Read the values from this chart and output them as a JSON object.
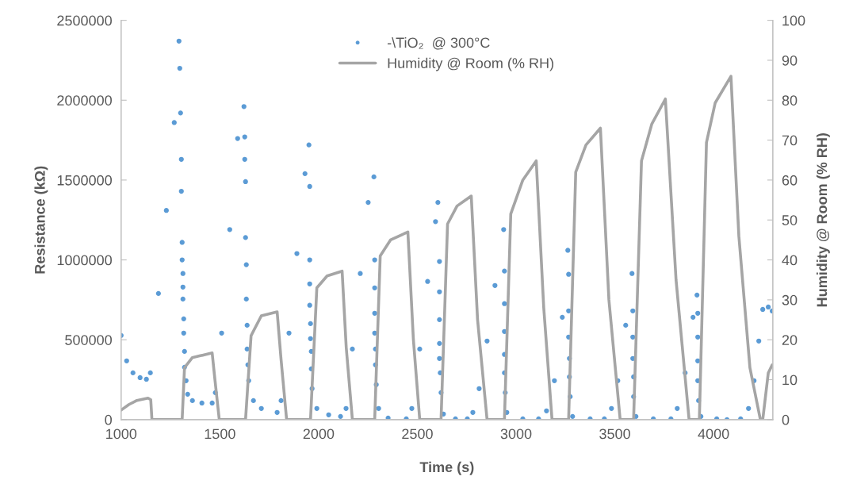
{
  "chart_data": {
    "type": "scatter",
    "xlabel": "Time (s)",
    "ylabel": "Resistance (kΩ)",
    "y2label": "Humidity @ Room (% RH)",
    "xlim": [
      1000,
      4300
    ],
    "xticks": [
      1000,
      1500,
      2000,
      2500,
      3000,
      3500,
      4000
    ],
    "ylim": [
      0,
      2500000
    ],
    "yticks": [
      0,
      500000,
      1000000,
      1500000,
      2000000,
      2500000
    ],
    "y2lim": [
      0,
      100
    ],
    "y2ticks": [
      0,
      10,
      20,
      30,
      40,
      50,
      60,
      70,
      80,
      90,
      100
    ],
    "grid": false,
    "legend": "top",
    "series": [
      {
        "name": "-\\TiO₂  @ 300°C",
        "marker": "circle",
        "color": "#5b9bd5",
        "x": [
          1000,
          1028,
          1060,
          1096,
          1128,
          1148,
          1189,
          1229,
          1269,
          1293,
          1297,
          1301,
          1305,
          1305,
          1309,
          1309,
          1313,
          1313,
          1313,
          1317,
          1317,
          1321,
          1321,
          1329,
          1337,
          1361,
          1409,
          1461,
          1477,
          1509,
          1550,
          1590,
          1622,
          1626,
          1626,
          1630,
          1630,
          1634,
          1634,
          1638,
          1638,
          1642,
          1646,
          1670,
          1710,
          1790,
          1810,
          1850,
          1890,
          1931,
          1951,
          1955,
          1955,
          1955,
          1955,
          1959,
          1959,
          1963,
          1963,
          1967,
          1991,
          2051,
          2111,
          2139,
          2171,
          2211,
          2251,
          2280,
          2284,
          2284,
          2284,
          2284,
          2288,
          2288,
          2292,
          2304,
          2352,
          2444,
          2472,
          2512,
          2552,
          2592,
          2604,
          2612,
          2612,
          2612,
          2612,
          2612,
          2616,
          2620,
          2632,
          2693,
          2753,
          2781,
          2813,
          2853,
          2893,
          2937,
          2941,
          2941,
          2941,
          2941,
          2941,
          2945,
          2953,
          3034,
          3114,
          3154,
          3194,
          3234,
          3262,
          3266,
          3266,
          3266,
          3270,
          3270,
          3274,
          3286,
          3375,
          3447,
          3483,
          3515,
          3555,
          3587,
          3591,
          3591,
          3591,
          3595,
          3595,
          3607,
          3695,
          3784,
          3816,
          3856,
          3896,
          3916,
          3920,
          3920,
          3920,
          3920,
          3924,
          3936,
          4016,
          4068,
          4137,
          4177,
          4205,
          4229,
          4249,
          4277,
          4297
        ],
        "values": [
          527000,
          368000,
          293000,
          263000,
          253000,
          293000,
          790000,
          1310000,
          1860000,
          2370000,
          2200000,
          1920000,
          1630000,
          1430000,
          1110000,
          1000000,
          915000,
          830000,
          755000,
          631000,
          542000,
          427000,
          328000,
          244000,
          159000,
          119000,
          104000,
          104000,
          169000,
          542000,
          1190000,
          1760000,
          1960000,
          1770000,
          1630000,
          1490000,
          1140000,
          970000,
          755000,
          591000,
          442000,
          343000,
          244000,
          119000,
          70000,
          45000,
          119000,
          542000,
          1040000,
          1540000,
          1720000,
          1460000,
          1000000,
          850000,
          716000,
          601000,
          507000,
          427000,
          318000,
          194000,
          70000,
          30000,
          20000,
          70000,
          442000,
          915000,
          1360000,
          1520000,
          1000000,
          825000,
          666000,
          542000,
          442000,
          343000,
          219000,
          70000,
          10000,
          5000,
          70000,
          442000,
          865000,
          1240000,
          1360000,
          990000,
          800000,
          626000,
          477000,
          383000,
          293000,
          169000,
          35000,
          5000,
          5000,
          45000,
          194000,
          492000,
          840000,
          1190000,
          930000,
          726000,
          552000,
          408000,
          293000,
          169000,
          45000,
          5000,
          5000,
          55000,
          244000,
          641000,
          1060000,
          910000,
          681000,
          517000,
          383000,
          268000,
          144000,
          20000,
          5000,
          5000,
          70000,
          244000,
          591000,
          915000,
          681000,
          517000,
          383000,
          268000,
          144000,
          20000,
          5000,
          5000,
          70000,
          293000,
          641000,
          780000,
          666000,
          517000,
          368000,
          244000,
          119000,
          20000,
          5000,
          0,
          5000,
          70000,
          244000,
          492000,
          690000,
          705000,
          680000
        ]
      },
      {
        "name": "Humidity @ Room (% RH)",
        "type": "line",
        "axis": "y2",
        "color": "#a5a5a5",
        "x": [
          1000,
          1040,
          1080,
          1136,
          1150,
          1156,
          1309,
          1321,
          1360,
          1401,
          1461,
          1475,
          1497,
          1630,
          1658,
          1710,
          1790,
          1810,
          1838,
          1959,
          1991,
          2043,
          2119,
          2140,
          2171,
          2284,
          2312,
          2364,
          2452,
          2480,
          2512,
          2620,
          2653,
          2701,
          2773,
          2805,
          2853,
          2941,
          2973,
          3034,
          3102,
          3140,
          3182,
          3266,
          3302,
          3354,
          3427,
          3470,
          3527,
          3595,
          3635,
          3687,
          3756,
          3810,
          3876,
          3928,
          3964,
          4008,
          4088,
          4128,
          4184,
          4237,
          4249,
          4277,
          4297
        ],
        "values": [
          2.4,
          3.8,
          4.8,
          5.4,
          5,
          0,
          0,
          13,
          15.5,
          16,
          16.7,
          10,
          0,
          0,
          21,
          26,
          27,
          15,
          0,
          0,
          33,
          36,
          37.2,
          18,
          0,
          0,
          41,
          45,
          47,
          20,
          0,
          0,
          49,
          53.5,
          56,
          25,
          0,
          0,
          51.5,
          60,
          64.8,
          28,
          0,
          0,
          62,
          68.8,
          73,
          30,
          0,
          0,
          64.8,
          74,
          80.3,
          35,
          0,
          0,
          69.4,
          79.3,
          86,
          46,
          13,
          0,
          0,
          11.7,
          13.7
        ]
      }
    ]
  }
}
